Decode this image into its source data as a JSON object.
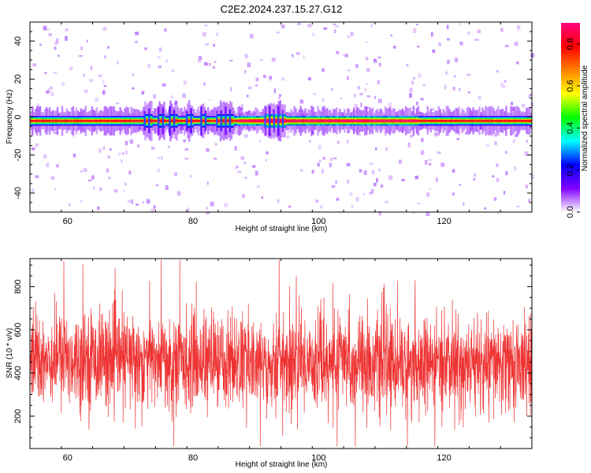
{
  "chart_data": [
    {
      "type": "heatmap",
      "title": "C2E2.2024.237.15.27.G12",
      "xlabel": "Height of straight line (km)",
      "ylabel": "Frequency (Hz)",
      "xlim": [
        54,
        134
      ],
      "ylim": [
        -50,
        50
      ],
      "x_ticks": [
        60,
        80,
        100,
        120
      ],
      "y_ticks": [
        -40,
        -20,
        0,
        20,
        40
      ],
      "dominant_band_center_hz": -2,
      "dominant_band_halfwidth_hz": 2.5,
      "pulse_clusters_km": [
        [
          72.3,
          73.5
        ],
        [
          74.5,
          75.5
        ],
        [
          76.3,
          77.5
        ],
        [
          79.0,
          80.0
        ],
        [
          81.3,
          82.0
        ],
        [
          83.8,
          86.5
        ],
        [
          91.5,
          94.8
        ]
      ],
      "colorbar": {
        "label": "Normalized spectral amplitude",
        "range": [
          0,
          0.9
        ],
        "ticks": [
          0.0,
          0.2,
          0.4,
          0.6,
          0.8
        ],
        "colors": [
          "#ffffff",
          "#8000ff",
          "#0000ff",
          "#00ffff",
          "#00ff00",
          "#ffff00",
          "#ff8000",
          "#ff0000",
          "#ff0080"
        ]
      },
      "grid": false
    },
    {
      "type": "line",
      "xlabel": "Height of straight line (km)",
      "ylabel": "SNR (10 * v/v)",
      "xlim": [
        54,
        134
      ],
      "ylim": [
        50,
        930
      ],
      "x_ticks": [
        60,
        80,
        100,
        120
      ],
      "y_ticks": [
        200,
        400,
        600,
        800
      ],
      "series": [
        {
          "color": "#ee3333",
          "mean_profile": {
            "x": [
              54,
              60,
              70,
              80,
              90,
              100,
              110,
              120,
              134
            ],
            "y": [
              470,
              470,
              465,
              460,
              450,
              455,
              445,
              430,
              440
            ]
          },
          "typical_spread": 110,
          "max_value": 925,
          "min_value": 60
        }
      ],
      "grid": false
    }
  ]
}
